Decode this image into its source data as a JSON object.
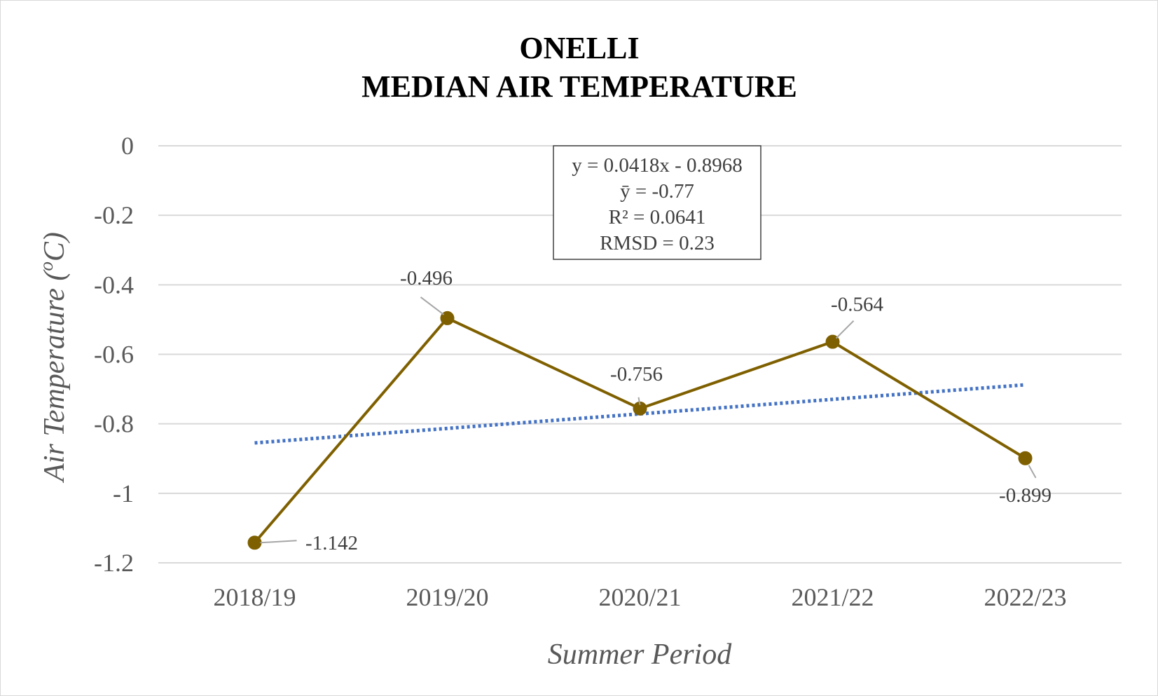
{
  "chart_data": {
    "type": "line",
    "title": [
      "ONELLI",
      "MEDIAN AIR TEMPERATURE"
    ],
    "xlabel": "Summer Period",
    "ylabel_parts": [
      "Air Temperature (",
      "o",
      "C)"
    ],
    "categories": [
      "2018/19",
      "2019/20",
      "2020/21",
      "2021/22",
      "2022/23"
    ],
    "series": [
      {
        "values": [
          -1.142,
          -0.496,
          -0.756,
          -0.564,
          -0.899
        ],
        "labels": [
          "-1.142",
          "-0.496",
          "-0.756",
          "-0.564",
          "-0.899"
        ],
        "color": "#7f6000",
        "marker": "circle"
      }
    ],
    "trendline": {
      "type": "linear",
      "slope": 0.0418,
      "intercept": -0.8968,
      "color": "#4472c4",
      "style": "dotted"
    },
    "ylim": [
      -1.2,
      0
    ],
    "yticks": [
      0,
      -0.2,
      -0.4,
      -0.6,
      -0.8,
      -1,
      -1.2
    ],
    "ytick_labels": [
      "0",
      "-0.2",
      "-0.4",
      "-0.6",
      "-0.8",
      "-1",
      "-1.2"
    ],
    "grid": true,
    "legend": "none",
    "stats_box": [
      "y = 0.0418x - 0.8968",
      "ȳ = -0.77",
      "R² = 0.0641",
      "RMSD = 0.23"
    ],
    "gridline_color": "#d9d9d9"
  }
}
